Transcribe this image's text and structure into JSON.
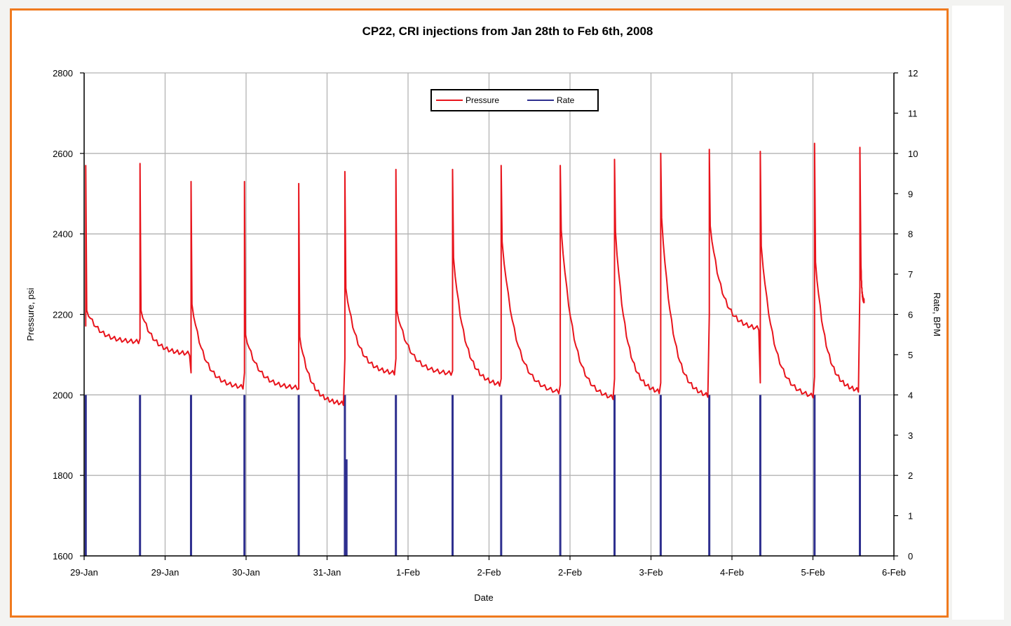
{
  "chart_data": {
    "type": "line",
    "title": "CP22, CRI injections from Jan 28th to Feb 6th, 2008",
    "xlabel": "Date",
    "ylabel_left": "Pressure, psi",
    "ylabel_right": "Rate, BPM",
    "x_tick_labels": [
      "29-Jan",
      "29-Jan",
      "30-Jan",
      "31-Jan",
      "1-Feb",
      "2-Feb",
      "2-Feb",
      "3-Feb",
      "4-Feb",
      "5-Feb",
      "6-Feb"
    ],
    "y_left_ticks": [
      "1600",
      "1800",
      "2000",
      "2200",
      "2400",
      "2600",
      "2800"
    ],
    "y_right_ticks": [
      "0",
      "1",
      "2",
      "3",
      "4",
      "5",
      "6",
      "7",
      "8",
      "9",
      "10",
      "11",
      "12"
    ],
    "ylim_left": [
      1600,
      2800
    ],
    "ylim_right": [
      0,
      12
    ],
    "xlim": [
      0,
      10
    ],
    "grid": true,
    "legend_position": "top-center",
    "series": [
      {
        "name": "Pressure",
        "axis": "left",
        "color": "#e8141c",
        "peaks": [
          {
            "t": 0.02,
            "peak": 2570,
            "base": 2210
          },
          {
            "t": 0.69,
            "peak": 2575,
            "base": 2210
          },
          {
            "t": 1.32,
            "peak": 2530,
            "base": 2225
          },
          {
            "t": 1.98,
            "peak": 2530,
            "base": 2150
          },
          {
            "t": 2.65,
            "peak": 2525,
            "base": 2145
          },
          {
            "t": 3.22,
            "peak": 2555,
            "base": 2265
          },
          {
            "t": 3.85,
            "peak": 2560,
            "base": 2210
          },
          {
            "t": 4.55,
            "peak": 2560,
            "base": 2340
          },
          {
            "t": 5.15,
            "peak": 2570,
            "base": 2380
          },
          {
            "t": 5.88,
            "peak": 2570,
            "base": 2410
          },
          {
            "t": 6.55,
            "peak": 2585,
            "base": 2405
          },
          {
            "t": 7.12,
            "peak": 2600,
            "base": 2440
          },
          {
            "t": 7.72,
            "peak": 2610,
            "base": 2420
          },
          {
            "t": 8.35,
            "peak": 2605,
            "base": 2370
          },
          {
            "t": 9.02,
            "peak": 2625,
            "base": 2330
          },
          {
            "t": 9.58,
            "peak": 2615,
            "base": 2340
          }
        ],
        "troughs": [
          2130,
          2100,
          2015,
          2015,
          1975,
          2050,
          2050,
          2020,
          2000,
          1985,
          2000,
          1990,
          2160,
          1990,
          2005,
          2230
        ]
      },
      {
        "name": "Rate",
        "axis": "right",
        "color": "#2e2f8f",
        "pulses": [
          {
            "t": 0.02,
            "rate": 4.0
          },
          {
            "t": 0.69,
            "rate": 4.0
          },
          {
            "t": 1.32,
            "rate": 4.0
          },
          {
            "t": 1.98,
            "rate": 4.0
          },
          {
            "t": 2.65,
            "rate": 4.0
          },
          {
            "t": 3.22,
            "rate": 4.0
          },
          {
            "t": 3.24,
            "rate": 2.4
          },
          {
            "t": 3.85,
            "rate": 4.0
          },
          {
            "t": 4.55,
            "rate": 4.0
          },
          {
            "t": 5.15,
            "rate": 4.0
          },
          {
            "t": 5.88,
            "rate": 4.0
          },
          {
            "t": 6.55,
            "rate": 4.0
          },
          {
            "t": 7.12,
            "rate": 4.0
          },
          {
            "t": 7.72,
            "rate": 4.0
          },
          {
            "t": 8.35,
            "rate": 4.0
          },
          {
            "t": 9.02,
            "rate": 4.0
          },
          {
            "t": 9.58,
            "rate": 4.0
          }
        ]
      }
    ]
  }
}
